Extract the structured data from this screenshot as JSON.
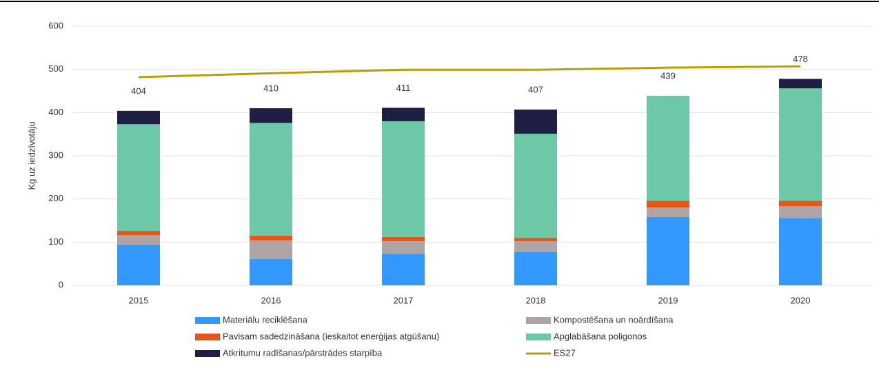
{
  "chart_data": {
    "type": "stacked-bar-line",
    "y_label": "Kg uz iedzīvotāju",
    "categories": [
      "2015",
      "2016",
      "2017",
      "2018",
      "2019",
      "2020"
    ],
    "series": [
      {
        "name": "Materiālu reciklēšana",
        "color": "#3399ff",
        "values": [
          94,
          61,
          73,
          77,
          158,
          156
        ]
      },
      {
        "name": "Kompostēšana un noārdīšana",
        "color": "#b0a3a3",
        "values": [
          22,
          43,
          29,
          25,
          22,
          27
        ]
      },
      {
        "name": "Pavisam sadedzināšana (ieskaitot enerģijas atgūšanu)",
        "color": "#e4571b",
        "values": [
          10,
          11,
          10,
          8,
          16,
          13
        ]
      },
      {
        "name": "Apglabāšana poligonos",
        "color": "#6dc8a8",
        "values": [
          247,
          261,
          268,
          241,
          243,
          260
        ]
      },
      {
        "name": "Atkritumu radīšanas/pārstrādes starpība",
        "color": "#1f1f45",
        "values": [
          31,
          34,
          31,
          56,
          0,
          22
        ]
      },
      {
        "name": "ES27",
        "color": "#b8a000",
        "type": "line",
        "values": [
          482,
          491,
          499,
          499,
          504,
          507
        ]
      }
    ],
    "totals": [
      404,
      410,
      411,
      407,
      439,
      478
    ],
    "ylim": [
      0,
      600
    ],
    "yticks": [
      0,
      100,
      200,
      300,
      400,
      500,
      600
    ],
    "grid": true
  }
}
